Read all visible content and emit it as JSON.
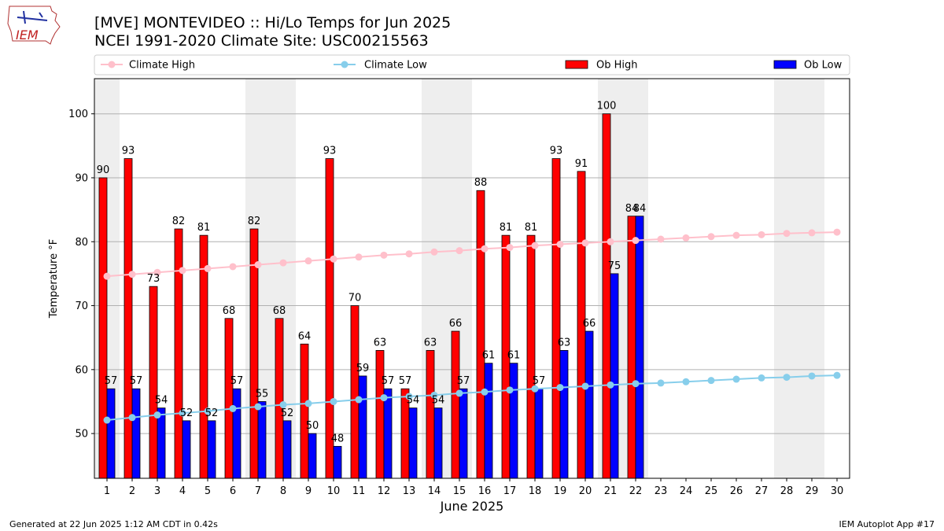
{
  "header": {
    "title_line1": "[MVE] MONTEVIDEO :: Hi/Lo Temps for Jun 2025",
    "title_line2": "NCEI 1991-2020 Climate Site: USC00215563",
    "logo_text": "IEM"
  },
  "footer": {
    "left": "Generated at 22 Jun 2025 1:12 AM CDT in 0.42s",
    "right": "IEM Autoplot App #17"
  },
  "colors": {
    "ob_high": "#ff0000",
    "ob_low": "#0000ff",
    "climate_high": "#ffc0cb",
    "climate_low": "#87ceeb",
    "weekend_band": "#eeeeee",
    "grid": "#b0b0b0"
  },
  "chart_data": {
    "type": "bar",
    "xlabel": "June 2025",
    "ylabel": "Temperature $^\\circ$F",
    "ylim": [
      43,
      105.5
    ],
    "yticks": [
      50,
      60,
      70,
      80,
      90,
      100
    ],
    "categories": [
      "1",
      "2",
      "3",
      "4",
      "5",
      "6",
      "7",
      "8",
      "9",
      "10",
      "11",
      "12",
      "13",
      "14",
      "15",
      "16",
      "17",
      "18",
      "19",
      "20",
      "21",
      "22",
      "23",
      "24",
      "25",
      "26",
      "27",
      "28",
      "29",
      "30"
    ],
    "weekend_days": [
      1,
      7,
      8,
      14,
      15,
      21,
      22,
      28,
      29
    ],
    "legend": [
      "Climate High",
      "Climate Low",
      "Ob High",
      "Ob Low"
    ],
    "series": [
      {
        "name": "Ob High",
        "kind": "bar",
        "values": [
          90,
          93,
          73,
          82,
          81,
          68,
          82,
          68,
          64,
          93,
          70,
          63,
          57,
          63,
          66,
          88,
          81,
          81,
          93,
          91,
          100,
          84,
          null,
          null,
          null,
          null,
          null,
          null,
          null,
          null
        ]
      },
      {
        "name": "Ob Low",
        "kind": "bar",
        "values": [
          57,
          57,
          54,
          52,
          52,
          57,
          55,
          52,
          50,
          48,
          59,
          57,
          54,
          54,
          57,
          61,
          61,
          57,
          63,
          66,
          75,
          84,
          null,
          null,
          null,
          null,
          null,
          null,
          null,
          null
        ]
      },
      {
        "name": "Climate High",
        "kind": "line",
        "values": [
          74.6,
          74.9,
          75.2,
          75.5,
          75.8,
          76.1,
          76.4,
          76.7,
          77.0,
          77.3,
          77.6,
          77.9,
          78.1,
          78.4,
          78.6,
          78.9,
          79.1,
          79.4,
          79.6,
          79.8,
          80.0,
          80.2,
          80.4,
          80.6,
          80.8,
          81.0,
          81.1,
          81.3,
          81.4,
          81.5
        ]
      },
      {
        "name": "Climate Low",
        "kind": "line",
        "values": [
          52.1,
          52.5,
          52.9,
          53.2,
          53.5,
          53.9,
          54.2,
          54.5,
          54.7,
          55.0,
          55.3,
          55.6,
          55.8,
          56.0,
          56.3,
          56.5,
          56.8,
          57.0,
          57.2,
          57.4,
          57.6,
          57.8,
          57.9,
          58.1,
          58.3,
          58.5,
          58.7,
          58.8,
          59.0,
          59.1
        ]
      }
    ]
  }
}
